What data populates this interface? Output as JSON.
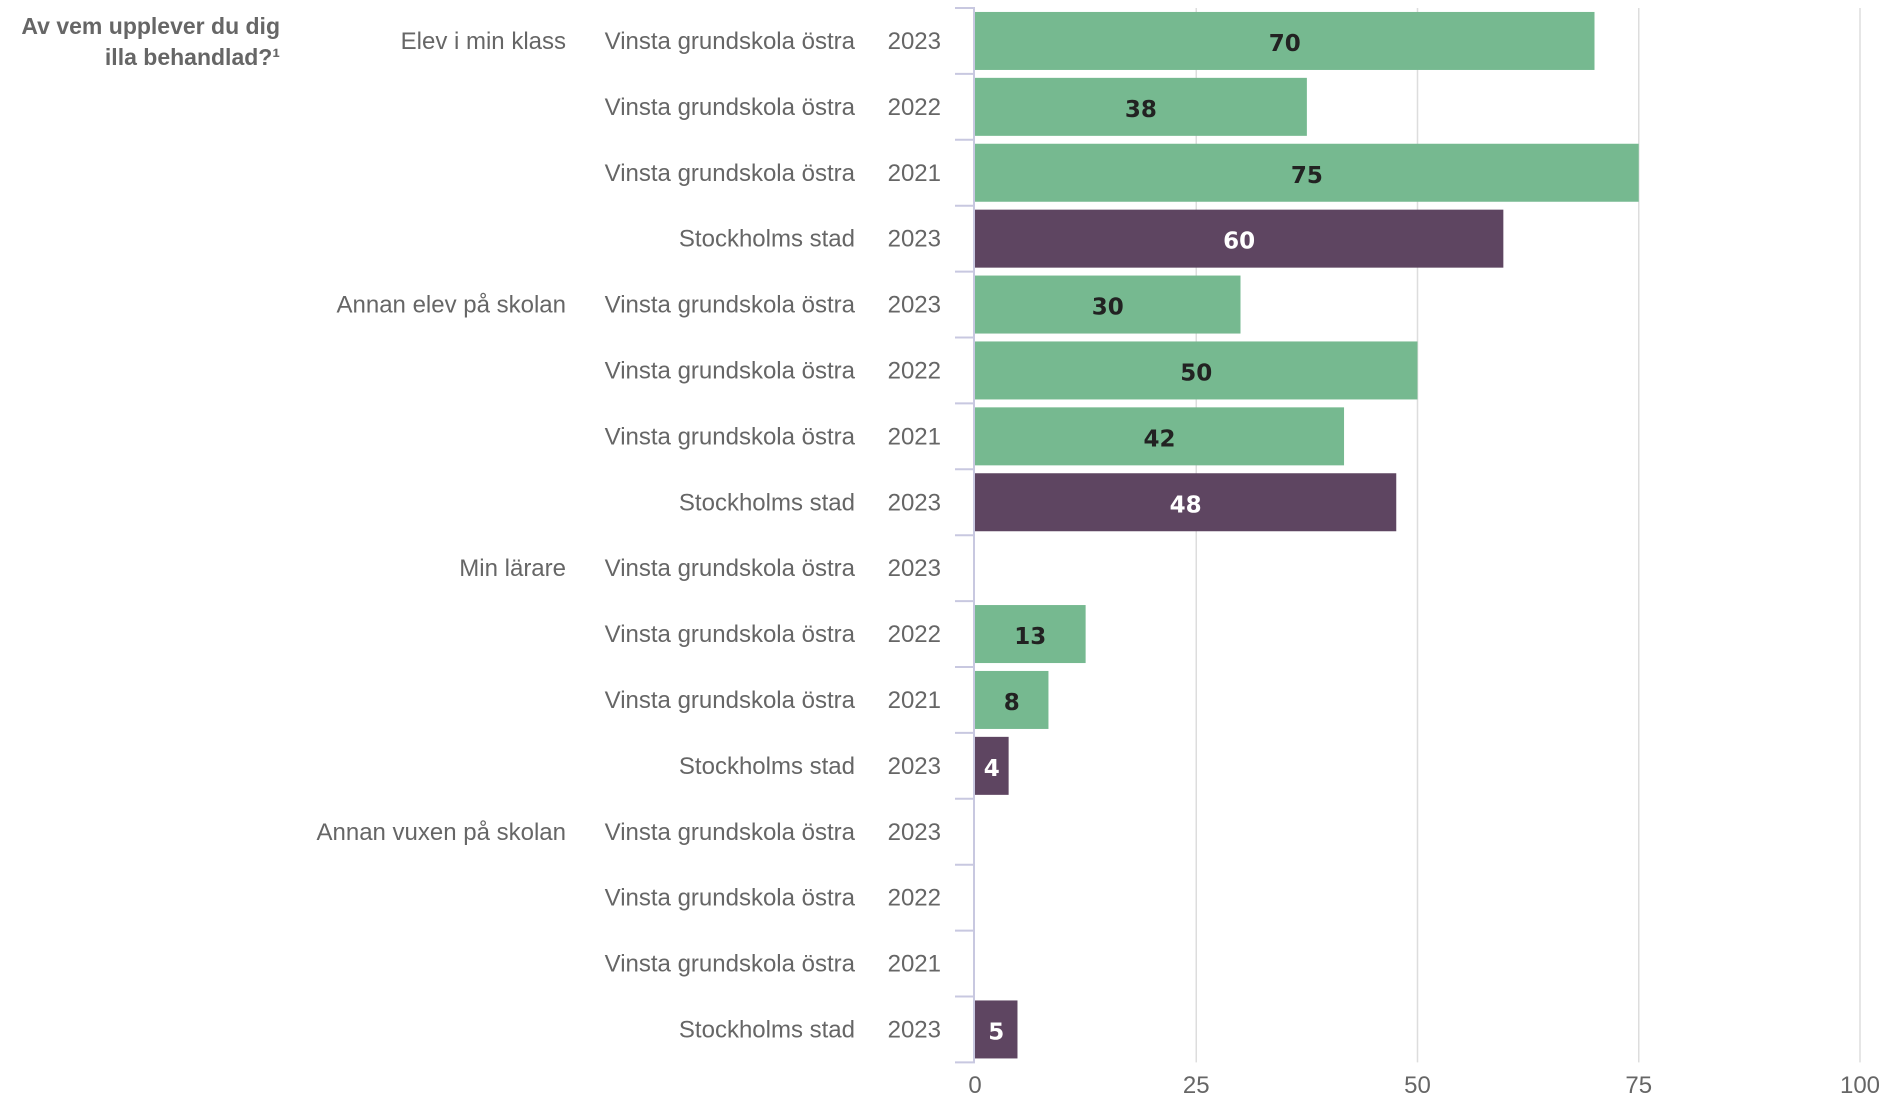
{
  "colors": {
    "school": "#76b990",
    "city": "#5e4561",
    "grid": "#dddddd",
    "axis": "#c8c8e0",
    "text": "#666666",
    "label_on_school": "#222222",
    "label_on_city": "#ffffff"
  },
  "chart_data": {
    "type": "bar",
    "orientation": "horizontal",
    "title": "Av vem upplever du dig illa behandlad?¹",
    "title_lines": [
      "Av vem upplever du dig",
      "illa behandlad?¹"
    ],
    "xlim": [
      0,
      100
    ],
    "xticks": [
      "0",
      "25",
      "50",
      "75",
      "100"
    ],
    "grid": true,
    "groups": [
      {
        "name": "Elev i min klass",
        "rows": [
          {
            "unit": "Vinsta grundskola östra",
            "year": "2023",
            "value": 70,
            "label": "70",
            "kind": "school"
          },
          {
            "unit": "Vinsta grundskola östra",
            "year": "2022",
            "value": 37.5,
            "label": "38",
            "kind": "school"
          },
          {
            "unit": "Vinsta grundskola östra",
            "year": "2021",
            "value": 75,
            "label": "75",
            "kind": "school"
          },
          {
            "unit": "Stockholms stad",
            "year": "2023",
            "value": 59.7,
            "label": "60",
            "kind": "city"
          }
        ]
      },
      {
        "name": "Annan elev på skolan",
        "rows": [
          {
            "unit": "Vinsta grundskola östra",
            "year": "2023",
            "value": 30,
            "label": "30",
            "kind": "school"
          },
          {
            "unit": "Vinsta grundskola östra",
            "year": "2022",
            "value": 50,
            "label": "50",
            "kind": "school"
          },
          {
            "unit": "Vinsta grundskola östra",
            "year": "2021",
            "value": 41.7,
            "label": "42",
            "kind": "school"
          },
          {
            "unit": "Stockholms stad",
            "year": "2023",
            "value": 47.6,
            "label": "48",
            "kind": "city"
          }
        ]
      },
      {
        "name": "Min lärare",
        "rows": [
          {
            "unit": "Vinsta grundskola östra",
            "year": "2023",
            "value": 0,
            "label": "",
            "kind": "school"
          },
          {
            "unit": "Vinsta grundskola östra",
            "year": "2022",
            "value": 12.5,
            "label": "13",
            "kind": "school"
          },
          {
            "unit": "Vinsta grundskola östra",
            "year": "2021",
            "value": 8.3,
            "label": "8",
            "kind": "school"
          },
          {
            "unit": "Stockholms stad",
            "year": "2023",
            "value": 3.8,
            "label": "4",
            "kind": "city"
          }
        ]
      },
      {
        "name": "Annan vuxen på skolan",
        "rows": [
          {
            "unit": "Vinsta grundskola östra",
            "year": "2023",
            "value": 0,
            "label": "",
            "kind": "school"
          },
          {
            "unit": "Vinsta grundskola östra",
            "year": "2022",
            "value": 0,
            "label": "",
            "kind": "school"
          },
          {
            "unit": "Vinsta grundskola östra",
            "year": "2021",
            "value": 0,
            "label": "",
            "kind": "school"
          },
          {
            "unit": "Stockholms stad",
            "year": "2023",
            "value": 4.8,
            "label": "5",
            "kind": "city"
          }
        ]
      }
    ]
  }
}
